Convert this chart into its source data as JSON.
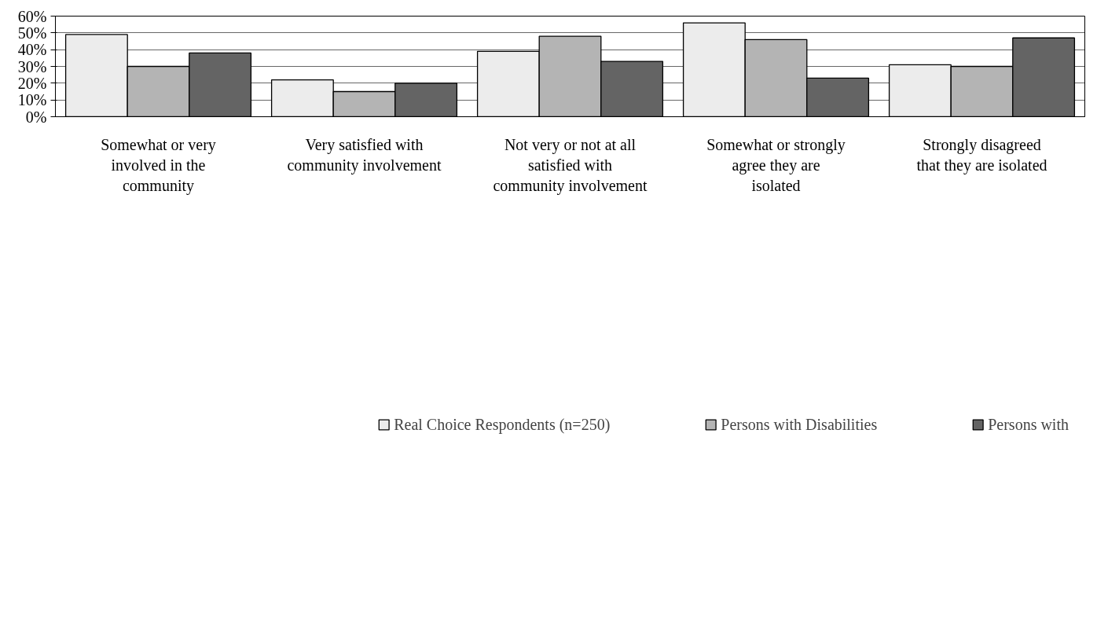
{
  "chart_data": {
    "type": "bar",
    "categories": [
      "Somewhat or very involved in the community",
      "Very satisfied with community involvement",
      "Not very or not at all satisfied with community involvement",
      "Somewhat or strongly agree they are isolated",
      "Strongly disagreed that they are isolated"
    ],
    "series": [
      {
        "name": "Real Choice Respondents (n=250)",
        "color": "#ececec",
        "values": [
          49,
          22,
          39,
          56,
          31
        ]
      },
      {
        "name": "Persons with Disabilities",
        "color": "#b4b4b4",
        "values": [
          30,
          15,
          48,
          46,
          30
        ]
      },
      {
        "name": "Persons with",
        "color": "#646464",
        "values": [
          38,
          20,
          33,
          23,
          47
        ]
      }
    ],
    "ylim": [
      0,
      60
    ],
    "yticks": [
      {
        "value": 0,
        "label": "0%"
      },
      {
        "value": 10,
        "label": "10%"
      },
      {
        "value": 20,
        "label": "20%"
      },
      {
        "value": 30,
        "label": "30%"
      },
      {
        "value": 40,
        "label": "40%"
      },
      {
        "value": 50,
        "label": "50%"
      },
      {
        "value": 60,
        "label": "60%"
      }
    ],
    "grid": "y",
    "legend": "bottom"
  }
}
